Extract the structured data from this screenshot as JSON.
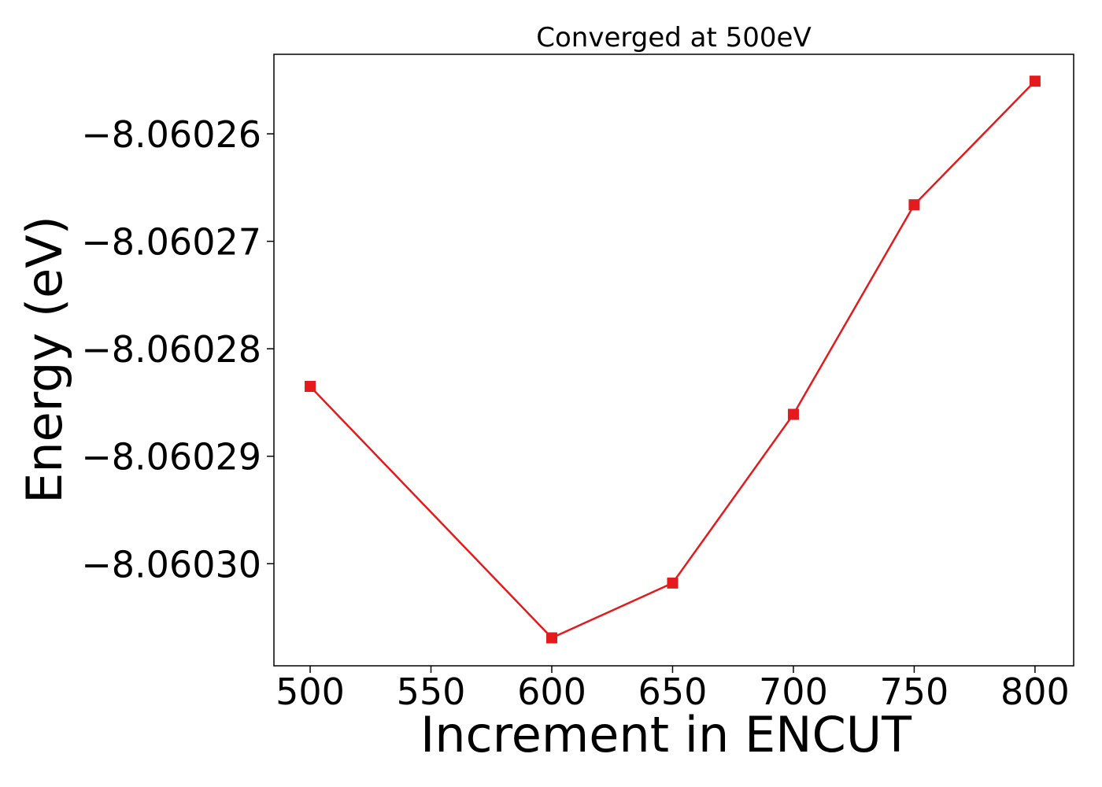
{
  "chart_data": {
    "type": "line",
    "title": "Converged at 500eV",
    "xlabel": "Increment in ENCUT",
    "ylabel": "Energy (eV)",
    "x": [
      500,
      600,
      650,
      700,
      750,
      800
    ],
    "series": [
      {
        "values": [
          -8.0602835,
          -8.0603069,
          -8.0603018,
          -8.0602861,
          -8.0602666,
          -8.0602551
        ],
        "color": "#e41a1c",
        "marker": "square"
      }
    ],
    "xlim": [
      485,
      816
    ],
    "ylim": [
      -8.0603095,
      -8.0602526
    ],
    "xticks": [
      500,
      550,
      600,
      650,
      700,
      750,
      800
    ],
    "xtick_labels": [
      "500",
      "550",
      "600",
      "650",
      "700",
      "750",
      "800"
    ],
    "yticks": [
      -8.06026,
      -8.06027,
      -8.06028,
      -8.06029,
      -8.0603
    ],
    "ytick_labels": [
      "−8.06026",
      "−8.06027",
      "−8.06028",
      "−8.06029",
      "−8.06030"
    ],
    "grid": false,
    "legend": "none"
  }
}
